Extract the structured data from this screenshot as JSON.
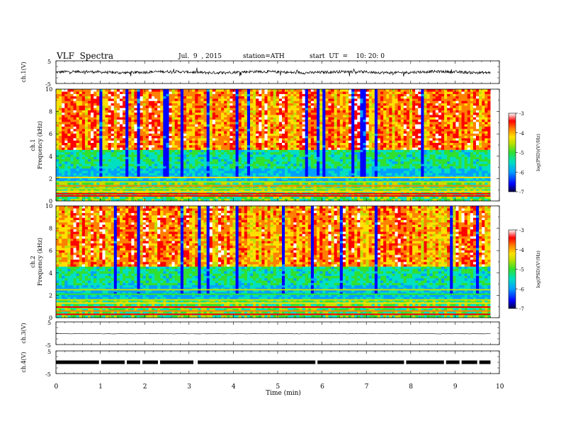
{
  "header": {
    "title": "VLF  Spectra",
    "date": "Jul.  9  , 2015",
    "station": "station=ATH",
    "start": "start  UT  =    10: 20: 0"
  },
  "chart_data": [
    {
      "type": "line",
      "panel": "ch1-waveform",
      "ylabel": "ch.1(V)",
      "y_ticks": [
        "5",
        "-5"
      ],
      "ylim": [
        -5,
        5
      ],
      "xlim": [
        0,
        10
      ],
      "description_values": {
        "baseline": 0,
        "typical_amplitude": 0.8
      }
    },
    {
      "type": "heatmap",
      "panel": "ch1-spectrogram",
      "ylabel_line1": "ch.1",
      "ylabel_line2": "Frequency  (kHz)",
      "y_ticks": [
        "0",
        "2",
        "4",
        "6",
        "8",
        "10"
      ],
      "ylim": [
        0,
        10
      ],
      "xlim": [
        0,
        9.8
      ],
      "colorbar": {
        "label": "log(PSD)(V²/Hz)",
        "ticks": [
          "-3",
          "-4",
          "-5",
          "-6",
          "-7"
        ],
        "range": [
          -7,
          -3
        ]
      }
    },
    {
      "type": "heatmap",
      "panel": "ch2-spectrogram",
      "ylabel_line1": "ch.2",
      "ylabel_line2": "Frequency  (kHz)",
      "y_ticks": [
        "0",
        "2",
        "4",
        "6",
        "8",
        "10"
      ],
      "ylim": [
        0,
        10
      ],
      "xlim": [
        0,
        9.8
      ],
      "colorbar": {
        "label": "log(PSD)(V²/Hz)",
        "ticks": [
          "-3",
          "-4",
          "-5",
          "-6",
          "-7"
        ],
        "range": [
          -7,
          -3
        ]
      }
    },
    {
      "type": "line",
      "panel": "ch3-waveform",
      "ylabel": "ch.3(V)",
      "y_ticks": [
        "5",
        "-5"
      ],
      "ylim": [
        -5,
        5
      ],
      "xlim": [
        0,
        10
      ]
    },
    {
      "type": "line",
      "panel": "ch4-waveform",
      "ylabel": "ch.4(V)",
      "y_ticks": [
        "5",
        "-5"
      ],
      "ylim": [
        -5,
        5
      ],
      "xlim": [
        0,
        10
      ]
    }
  ],
  "x_axis": {
    "label": "Time  (min)",
    "ticks": [
      "0",
      "1",
      "2",
      "3",
      "4",
      "5",
      "6",
      "7",
      "8",
      "9",
      "10"
    ],
    "range": [
      0,
      10
    ]
  },
  "colors": {
    "spectrum_scale": [
      "#000040",
      "#0000ff",
      "#00a0ff",
      "#00e0c0",
      "#30e030",
      "#c0e000",
      "#ffe000",
      "#ff8000",
      "#ff0000",
      "#ffffff"
    ]
  }
}
